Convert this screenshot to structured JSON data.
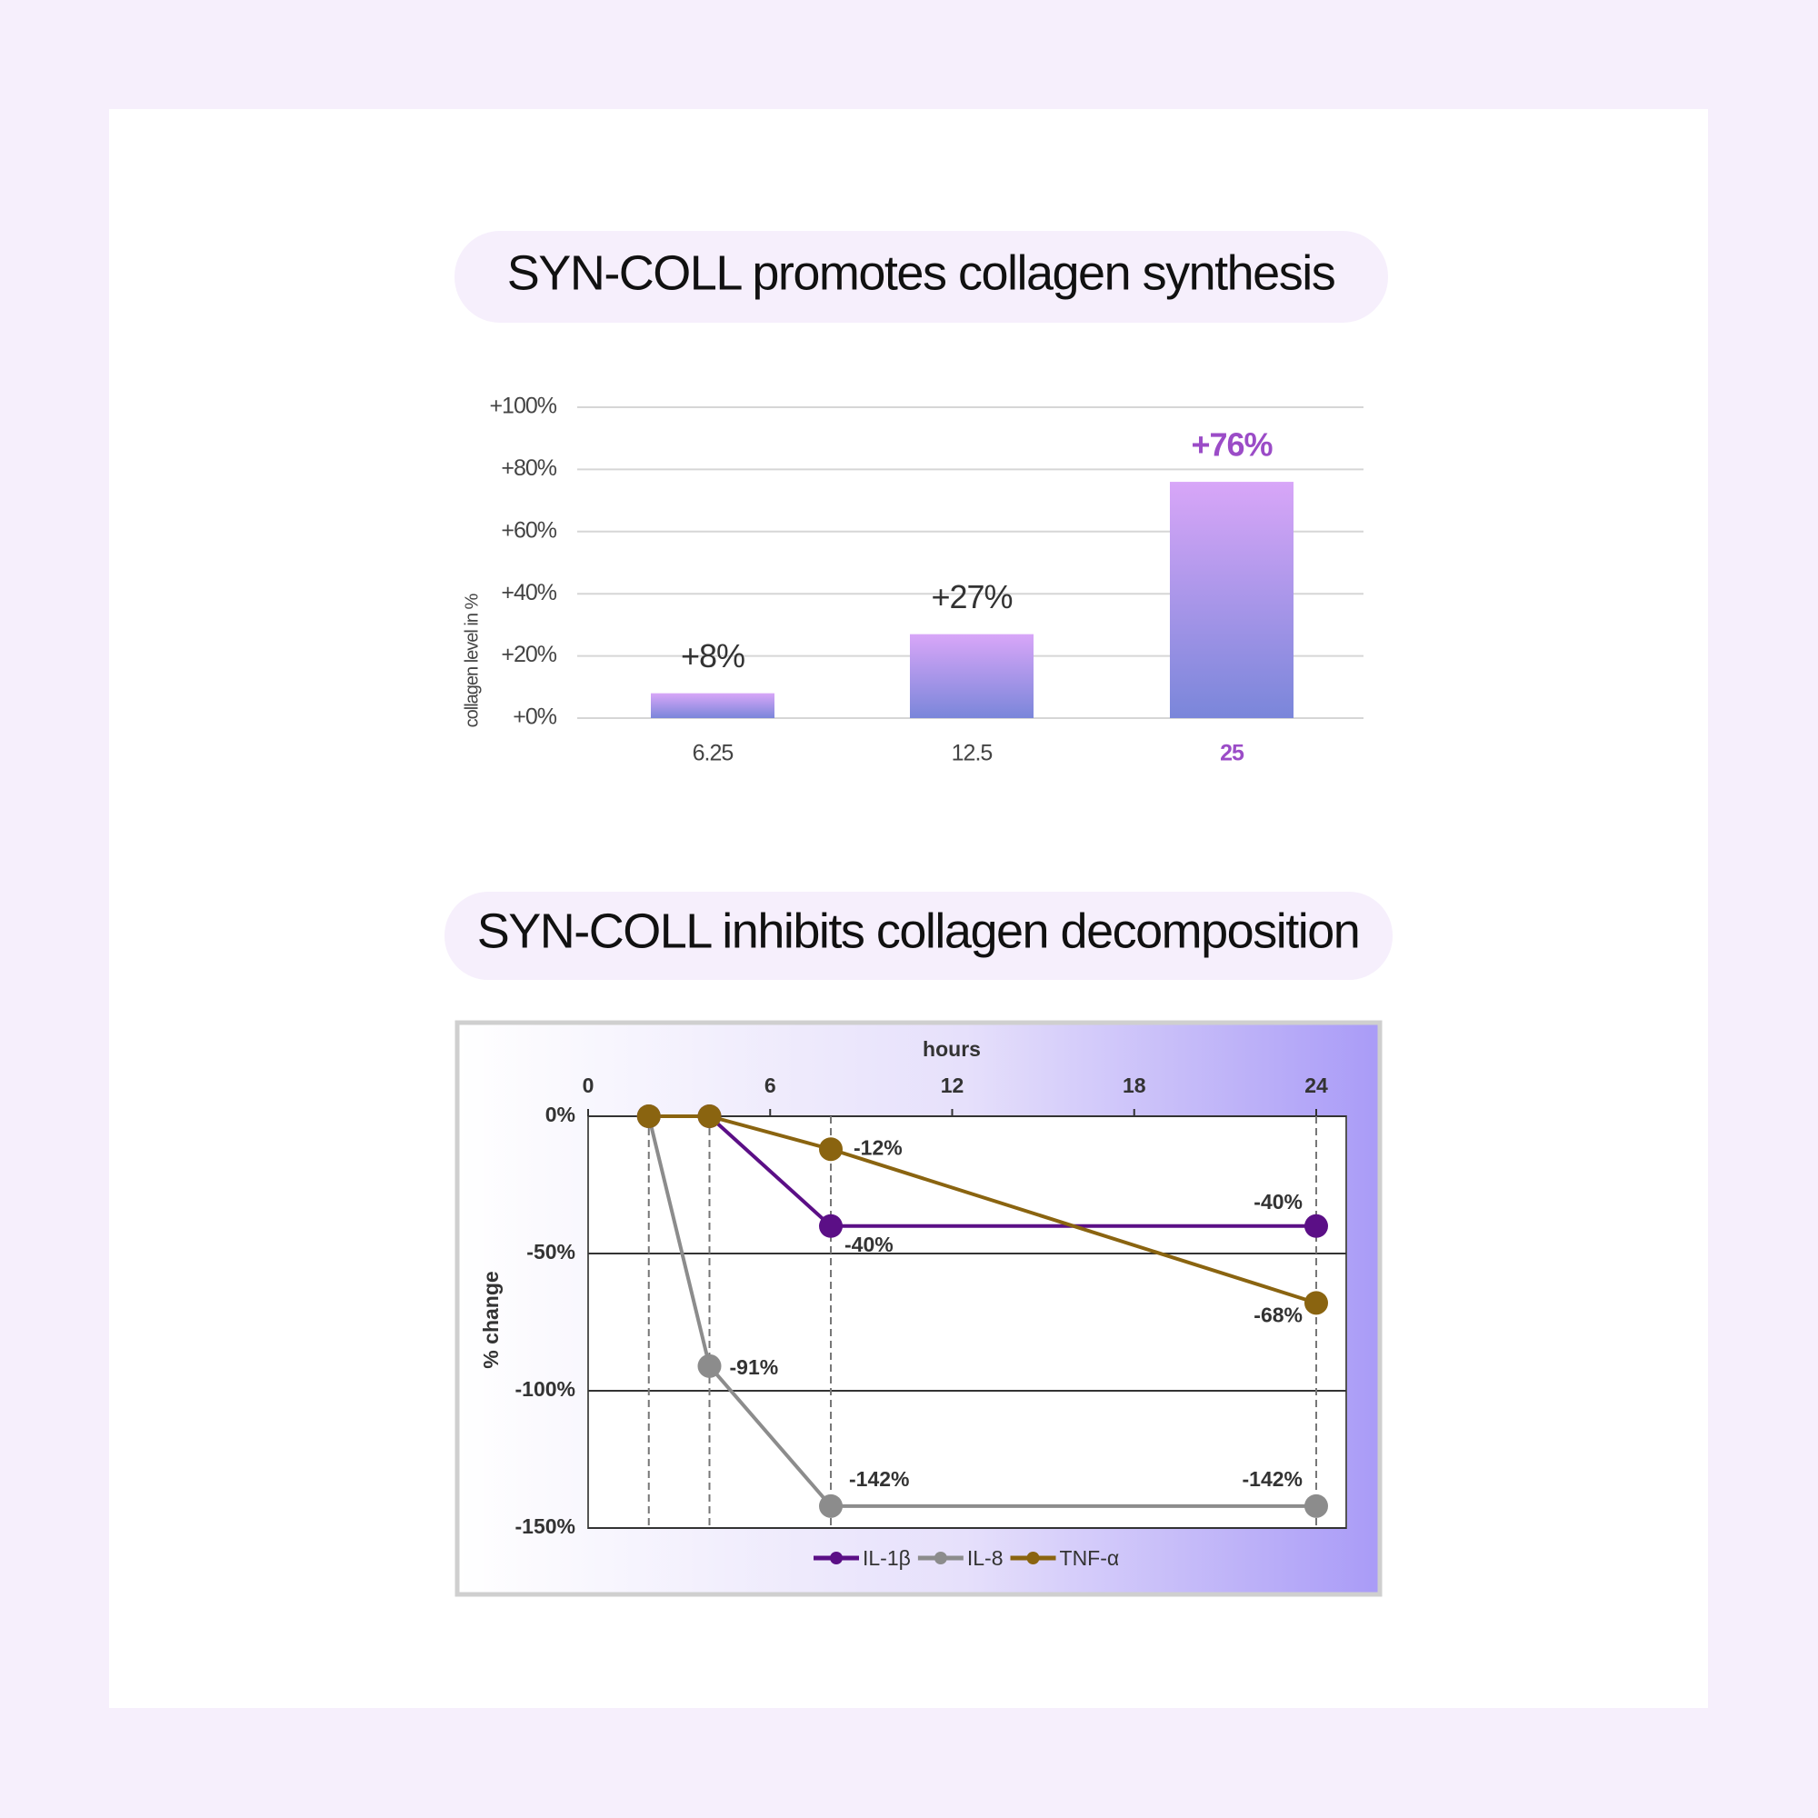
{
  "chart_data": [
    {
      "type": "bar",
      "title": "SYN-COLL promotes collagen synthesis",
      "y_label": "collagen level in %",
      "categories": [
        "6.25",
        "12.5",
        "25"
      ],
      "values": [
        8,
        27,
        76
      ],
      "value_labels": [
        "+8%",
        "+27%",
        "+76%"
      ],
      "ylim": [
        0,
        100
      ],
      "yticks": [
        {
          "value": 0,
          "label": "+0%"
        },
        {
          "value": 20,
          "label": "+20%"
        },
        {
          "value": 40,
          "label": "+40%"
        },
        {
          "value": 60,
          "label": "+60%"
        },
        {
          "value": 80,
          "label": "+80%"
        },
        {
          "value": 100,
          "label": "+100%"
        }
      ],
      "grid": true
    },
    {
      "type": "line",
      "title": "SYN-COLL inhibits collagen decomposition",
      "x_label": "hours",
      "y_label": "% change",
      "x": [
        2,
        4,
        8,
        24
      ],
      "xlim": [
        0,
        24
      ],
      "xticks": [
        0,
        6,
        12,
        18,
        24
      ],
      "ylim": [
        -150,
        0
      ],
      "yticks": [
        {
          "value": 0,
          "label": "0%"
        },
        {
          "value": -50,
          "label": "-50%"
        },
        {
          "value": -100,
          "label": "-100%"
        },
        {
          "value": -150,
          "label": "-150%"
        }
      ],
      "series": [
        {
          "name": "IL-1β",
          "color": "#5b0f86",
          "values": [
            0,
            0,
            -40,
            -40
          ],
          "value_labels": [
            null,
            null,
            "-40%",
            "-40%"
          ]
        },
        {
          "name": "IL-8",
          "color": "#8c8c8c",
          "values": [
            0,
            -91,
            -142,
            -142
          ],
          "value_labels": [
            null,
            "-91%",
            "-142%",
            "-142%"
          ]
        },
        {
          "name": "TNF-α",
          "color": "#8a6410",
          "values": [
            0,
            0,
            -12,
            -68
          ],
          "value_labels": [
            null,
            null,
            "-12%",
            "-68%"
          ]
        }
      ]
    }
  ]
}
